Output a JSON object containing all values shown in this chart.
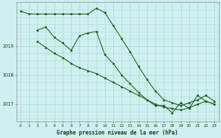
{
  "title": "Graphe pression niveau de la mer (hPa)",
  "background_color": "#cef0f0",
  "grid_color": "#b0d8d0",
  "line_color": "#1a5c1a",
  "marker_color": "#1a5c1a",
  "xlim": [
    -0.5,
    23.5
  ],
  "ylim": [
    1016.4,
    1020.5
  ],
  "yticks": [
    1017,
    1018,
    1019
  ],
  "xticks": [
    0,
    1,
    2,
    3,
    4,
    5,
    6,
    7,
    8,
    9,
    10,
    11,
    12,
    13,
    14,
    15,
    16,
    17,
    18,
    19,
    20,
    21,
    22,
    23
  ],
  "series": [
    {
      "x": [
        0,
        1,
        2,
        3,
        4,
        5,
        6,
        7,
        8,
        9,
        10,
        11,
        12,
        13,
        14,
        15,
        16,
        17,
        18,
        19,
        20,
        21,
        22,
        23
      ],
      "y": [
        1020.2,
        1020.1,
        1020.1,
        1020.1,
        1020.1,
        1020.1,
        1020.1,
        1020.1,
        1020.1,
        1020.3,
        1020.15,
        1019.7,
        1019.25,
        1018.8,
        1018.3,
        1017.85,
        1017.45,
        1017.15,
        1017.05,
        1016.95,
        1017.05,
        1017.15,
        1017.3,
        1017.1
      ]
    },
    {
      "x": [
        2,
        3,
        4,
        5,
        6,
        7,
        8,
        9,
        10,
        11,
        12,
        13,
        14,
        15,
        16,
        17,
        18,
        19,
        20,
        21,
        22,
        23
      ],
      "y": [
        1019.55,
        1019.65,
        1019.3,
        1019.1,
        1018.85,
        1019.35,
        1019.45,
        1019.5,
        1018.7,
        1018.4,
        1018.0,
        1017.7,
        1017.4,
        1017.15,
        1016.95,
        1016.95,
        1016.7,
        1017.05,
        1016.85,
        1017.3,
        1017.1,
        1017.0
      ]
    },
    {
      "x": [
        2,
        3,
        4,
        5,
        6,
        7,
        8,
        9,
        10,
        11,
        12,
        13,
        14,
        15,
        16,
        17,
        18,
        19,
        20,
        21,
        22,
        23
      ],
      "y": [
        1019.15,
        1018.95,
        1018.75,
        1018.6,
        1018.4,
        1018.25,
        1018.15,
        1018.05,
        1017.9,
        1017.75,
        1017.6,
        1017.45,
        1017.3,
        1017.15,
        1017.0,
        1016.9,
        1016.85,
        1016.8,
        1016.87,
        1017.0,
        1017.1,
        1017.0
      ]
    }
  ]
}
